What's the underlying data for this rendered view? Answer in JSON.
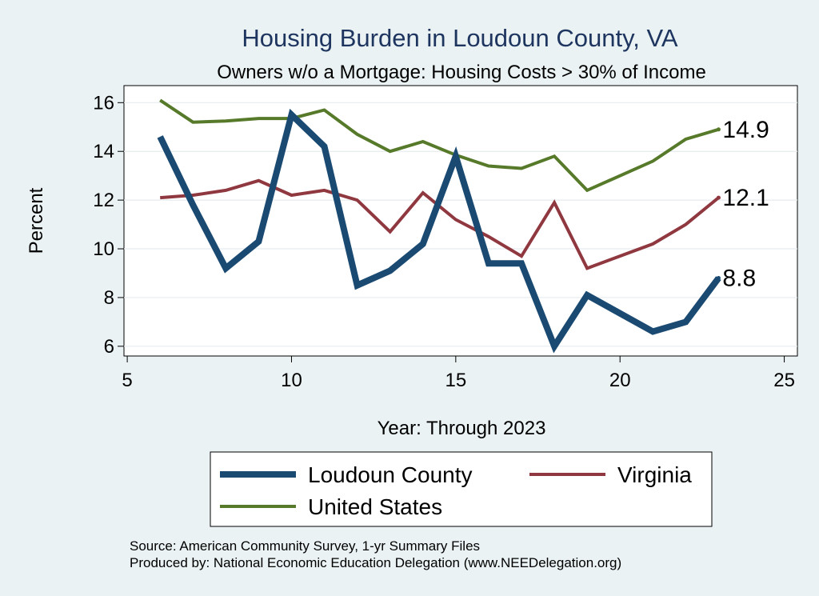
{
  "chart_data": {
    "type": "line",
    "title": "Housing Burden in Loudoun County, VA",
    "subtitle": "Owners w/o a Mortgage: Housing Costs > 30% of Income",
    "xlabel": "Year: Through 2023",
    "ylabel": "Percent",
    "xlim": [
      4.9,
      25.4
    ],
    "ylim": [
      5.6,
      16.7
    ],
    "xticks": [
      5,
      10,
      15,
      20,
      25
    ],
    "yticks": [
      6,
      8,
      10,
      12,
      14,
      16
    ],
    "grid": true,
    "legend_position": "bottom",
    "series": [
      {
        "name": "Loudoun County",
        "color": "#1a4a72",
        "x": [
          6,
          7,
          8,
          9,
          10,
          11,
          12,
          13,
          14,
          15,
          16,
          17,
          18,
          19,
          21,
          22,
          23
        ],
        "y": [
          14.6,
          11.8,
          9.2,
          10.3,
          15.5,
          14.2,
          8.5,
          9.1,
          10.2,
          13.8,
          9.4,
          9.4,
          6.0,
          8.1,
          6.6,
          7.0,
          8.8
        ],
        "end_label": "8.8"
      },
      {
        "name": "Virginia",
        "color": "#903840",
        "x": [
          6,
          7,
          8,
          9,
          10,
          11,
          12,
          13,
          14,
          15,
          16,
          17,
          18,
          19,
          21,
          22,
          23
        ],
        "y": [
          12.1,
          12.2,
          12.4,
          12.8,
          12.2,
          12.4,
          12.0,
          10.7,
          12.3,
          11.2,
          10.5,
          9.7,
          11.9,
          9.2,
          10.2,
          11.0,
          12.1
        ],
        "end_label": "12.1"
      },
      {
        "name": "United States",
        "color": "#567a2a",
        "x": [
          6,
          7,
          8,
          9,
          10,
          11,
          12,
          13,
          14,
          15,
          16,
          17,
          18,
          19,
          21,
          22,
          23
        ],
        "y": [
          16.1,
          15.2,
          15.25,
          15.35,
          15.35,
          15.7,
          14.7,
          14.0,
          14.4,
          13.85,
          13.4,
          13.3,
          13.8,
          12.4,
          13.6,
          14.5,
          14.9
        ],
        "end_label": "14.9"
      }
    ],
    "notes": [
      "Source: American Community Survey, 1-yr Summary Files",
      "Produced by: National Economic Education Delegation (www.NEEDelegation.org)"
    ]
  }
}
